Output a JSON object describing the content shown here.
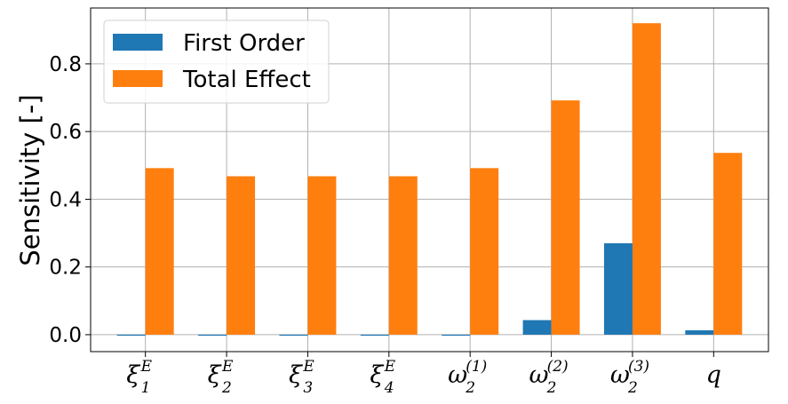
{
  "chart_data": {
    "type": "bar",
    "categories": [
      {
        "base": "ξ",
        "sup": "E",
        "sub": "1"
      },
      {
        "base": "ξ",
        "sup": "E",
        "sub": "2"
      },
      {
        "base": "ξ",
        "sup": "E",
        "sub": "3"
      },
      {
        "base": "ξ",
        "sup": "E",
        "sub": "4"
      },
      {
        "base": "ω",
        "sup": "(1)",
        "sub": "2"
      },
      {
        "base": "ω",
        "sup": "(2)",
        "sub": "2"
      },
      {
        "base": "ω",
        "sup": "(3)",
        "sub": "2"
      },
      {
        "base": "q",
        "sup": "",
        "sub": ""
      }
    ],
    "series": [
      {
        "name": "First Order",
        "color": "#1f77b4",
        "values": [
          -0.003,
          -0.003,
          -0.003,
          -0.003,
          -0.003,
          0.043,
          0.27,
          0.013
        ]
      },
      {
        "name": "Total Effect",
        "color": "#ff7f0e",
        "values": [
          0.492,
          0.468,
          0.468,
          0.468,
          0.492,
          0.692,
          0.92,
          0.537
        ]
      }
    ],
    "ylabel": "Sensitivity [-]",
    "xlabel": "",
    "ylim": [
      -0.05,
      0.965
    ],
    "yticks": [
      "0.0",
      "0.2",
      "0.4",
      "0.6",
      "0.8"
    ],
    "grid": true,
    "legend_position": "top-left"
  }
}
